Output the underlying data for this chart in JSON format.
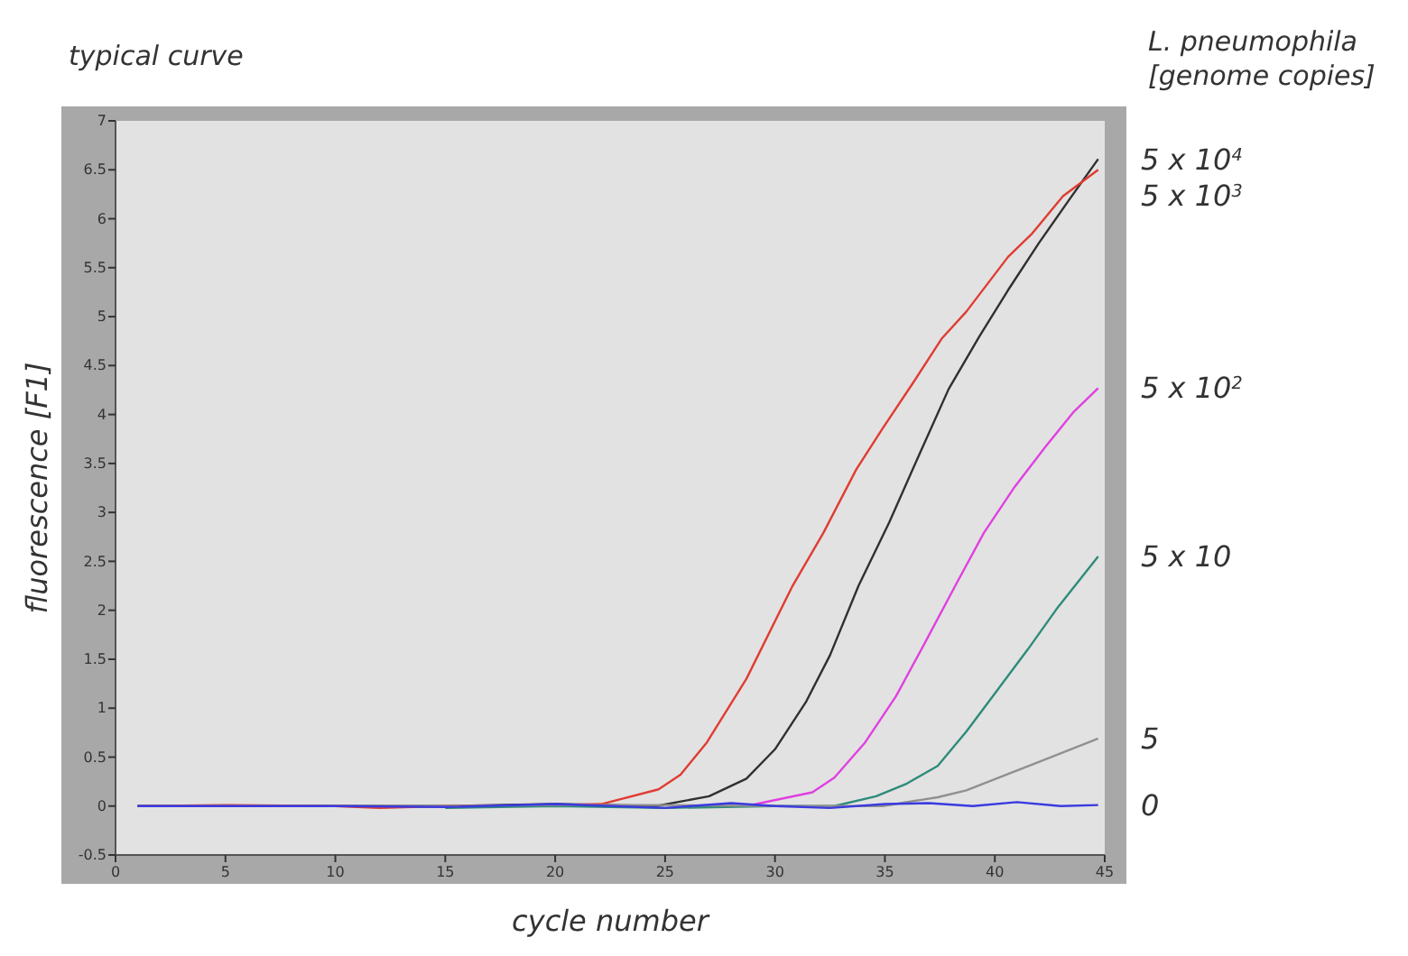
{
  "chart_data": {
    "type": "line",
    "title": "typical curve",
    "xlabel": "cycle number",
    "ylabel": "fluorescence [F1]",
    "legend_title": "L. pneumophila [genome copies]",
    "xlim": [
      0,
      45
    ],
    "xticks": [
      0,
      5,
      10,
      15,
      20,
      25,
      30,
      35,
      40,
      45
    ],
    "ylim": [
      -0.5,
      7
    ],
    "yticks": [
      -0.5,
      0,
      0.5,
      1,
      1.5,
      2,
      2.5,
      3,
      3.5,
      4,
      4.5,
      5,
      5.5,
      6,
      6.5,
      7
    ],
    "grid": false,
    "legend": "right",
    "marker": "none",
    "line_style": "solid",
    "series": [
      {
        "name": "5 x 10$^{4}$",
        "color": "#303030",
        "x": [
          1,
          5,
          10,
          15,
          20,
          24.6,
          27,
          28.7,
          30,
          31.4,
          32.5,
          33.8,
          35.2,
          36.6,
          37.9,
          39.3,
          40.6,
          42,
          43.4,
          44.7
        ],
        "values": [
          0,
          0,
          0,
          0,
          0.02,
          0,
          0.1,
          0.28,
          0.58,
          1.06,
          1.54,
          2.25,
          2.9,
          3.61,
          4.26,
          4.8,
          5.27,
          5.75,
          6.2,
          6.61
        ]
      },
      {
        "name": "5 x 10$^{3}$",
        "color": "#e03c31",
        "x": [
          1,
          5,
          10,
          12,
          15,
          20,
          22.1,
          24.7,
          25.7,
          26.9,
          28.7,
          30.8,
          32.2,
          33.7,
          34.9,
          36.3,
          37.6,
          38.7,
          40.6,
          41.7,
          43.1,
          44.7
        ],
        "values": [
          0,
          0.01,
          0,
          -0.02,
          0,
          0.01,
          0.02,
          0.17,
          0.32,
          0.65,
          1.3,
          2.25,
          2.79,
          3.44,
          3.86,
          4.33,
          4.78,
          5.05,
          5.61,
          5.85,
          6.23,
          6.5
        ]
      },
      {
        "name": "5 x 10$^{2}$",
        "color": "#e040e0",
        "x": [
          28.7,
          31.7,
          32.7,
          34.1,
          35.5,
          36.8,
          38.2,
          39.5,
          40.9,
          42.3,
          43.6,
          44.7
        ],
        "values": [
          0,
          0.14,
          0.29,
          0.65,
          1.12,
          1.66,
          2.25,
          2.79,
          3.26,
          3.67,
          4.03,
          4.27
        ]
      },
      {
        "name": "5 x 10",
        "color": "#2e8b7a",
        "x": [
          15,
          20,
          25,
          30,
          32.7,
          34.6,
          36,
          37.4,
          38.7,
          40.1,
          41.5,
          42.8,
          44.7
        ],
        "values": [
          -0.02,
          0,
          -0.02,
          0,
          0,
          0.1,
          0.23,
          0.41,
          0.76,
          1.18,
          1.6,
          2.01,
          2.55
        ]
      },
      {
        "name": "5",
        "color": "#909090",
        "x": [
          1,
          5,
          10,
          15,
          20,
          25,
          30,
          34.9,
          37.4,
          38.7,
          40.4,
          42,
          44.7
        ],
        "values": [
          0,
          0,
          0,
          0,
          0.01,
          0.01,
          0,
          0,
          0.09,
          0.16,
          0.31,
          0.45,
          0.69
        ]
      },
      {
        "name": "0",
        "color": "#3a3ae0",
        "x": [
          1,
          5,
          10,
          15,
          20,
          25,
          28,
          30,
          32.5,
          35,
          37,
          39,
          41,
          43,
          44.7
        ],
        "values": [
          0,
          0,
          0,
          -0.01,
          0.02,
          -0.02,
          0.03,
          0,
          -0.02,
          0.02,
          0.03,
          0,
          0.04,
          0,
          0.01
        ]
      }
    ]
  }
}
